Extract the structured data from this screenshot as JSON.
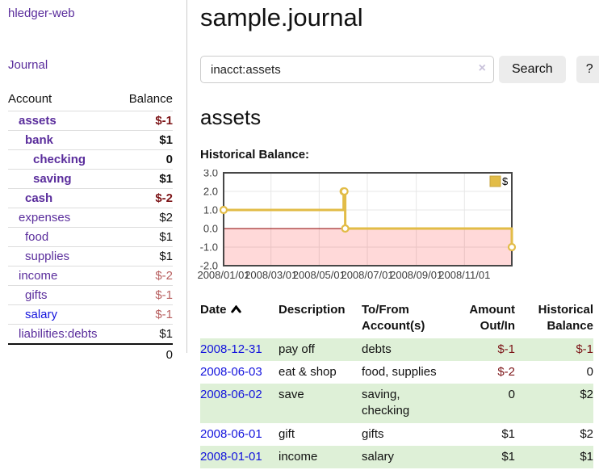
{
  "app": {
    "brand": "hledger-web",
    "nav_journal": "Journal"
  },
  "sidebar": {
    "header": {
      "account": "Account",
      "balance": "Balance"
    },
    "accounts": [
      {
        "name": "assets",
        "balance": "$-1"
      },
      {
        "name": "bank",
        "balance": "$1"
      },
      {
        "name": "checking",
        "balance": "0"
      },
      {
        "name": "saving",
        "balance": "$1"
      },
      {
        "name": "cash",
        "balance": "$-2"
      },
      {
        "name": "expenses",
        "balance": "$2"
      },
      {
        "name": "food",
        "balance": "$1"
      },
      {
        "name": "supplies",
        "balance": "$1"
      },
      {
        "name": "income",
        "balance": "$-2"
      },
      {
        "name": "gifts",
        "balance": "$-1"
      },
      {
        "name": "salary",
        "balance": "$-1"
      },
      {
        "name": "liabilities:debts",
        "balance": "$1"
      }
    ],
    "total": "0"
  },
  "header": {
    "title": "sample.journal"
  },
  "search": {
    "value": "inacct:assets",
    "clear": "×",
    "button": "Search",
    "help": "?"
  },
  "account_page": {
    "title": "assets",
    "chart_label": "Historical Balance:"
  },
  "chart_data": {
    "type": "line",
    "title": "Historical Balance:",
    "ylim": [
      -2,
      3
    ],
    "yticks": [
      "3.0",
      "2.0",
      "1.0",
      "0.0",
      "-1.0",
      "-2.0"
    ],
    "xticks": [
      "2008/01/01",
      "2008/03/01",
      "2008/05/01",
      "2008/07/01",
      "2008/09/01",
      "2008/11/01"
    ],
    "xrange": [
      "2008/01/01",
      "2008/12/31"
    ],
    "grid": true,
    "legend_position": "top-right",
    "series": [
      {
        "name": "$",
        "color": "#e2bc47",
        "step": true,
        "marker": "open-circle",
        "points": [
          [
            "2008/01/01",
            1
          ],
          [
            "2008/06/01",
            2
          ],
          [
            "2008/06/02",
            2
          ],
          [
            "2008/06/03",
            0
          ],
          [
            "2008/12/31",
            -1
          ]
        ]
      }
    ],
    "negative_region_fill": "rgba(255,0,0,0.15)",
    "zero_line_color": "#8b0000"
  },
  "register": {
    "headers": {
      "date": "Date",
      "description": "Description",
      "accounts": "To/From Account(s)",
      "amount": "Amount Out/In",
      "balance": "Historical Balance"
    },
    "rows": [
      {
        "date": "2008-12-31",
        "description": "pay off",
        "accounts": "debts",
        "amount": "$-1",
        "balance": "$-1"
      },
      {
        "date": "2008-06-03",
        "description": "eat & shop",
        "accounts": "food, supplies",
        "amount": "$-2",
        "balance": "0"
      },
      {
        "date": "2008-06-02",
        "description": "save",
        "accounts": "saving, checking",
        "amount": "0",
        "balance": "$2"
      },
      {
        "date": "2008-06-01",
        "description": "gift",
        "accounts": "gifts",
        "amount": "$1",
        "balance": "$2"
      },
      {
        "date": "2008-01-01",
        "description": "income",
        "accounts": "salary",
        "amount": "$1",
        "balance": "$1"
      }
    ]
  },
  "colors": {
    "link_purple": "#5a2d9c",
    "link_blue": "#1414dd",
    "negative_strong": "#7d1518",
    "negative_soft": "#b86060",
    "row_green": "#def0d7",
    "chart_line": "#e2bc47",
    "chart_zero_line": "#8b0000"
  }
}
